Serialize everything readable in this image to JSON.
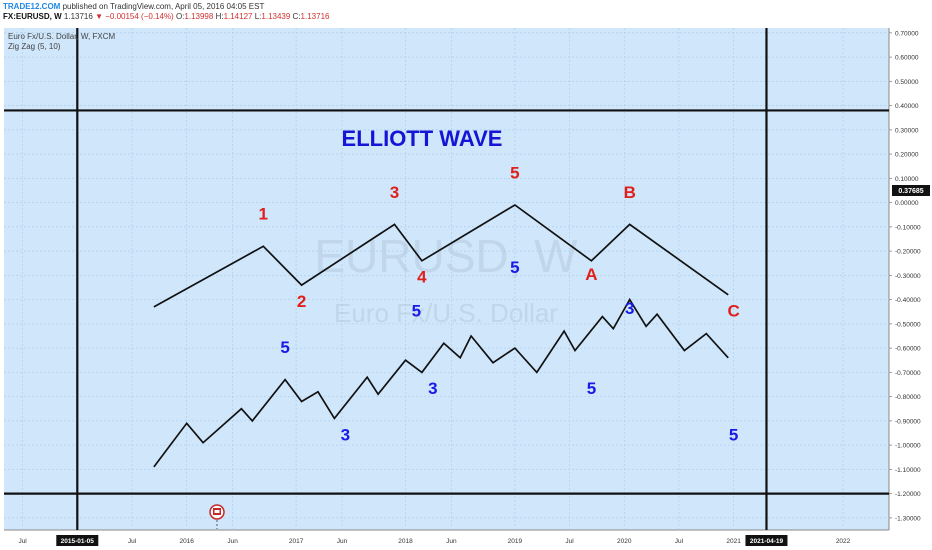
{
  "header": {
    "brand": "TRADE12.COM",
    "published": "published on TradingView.com, April 05, 2016 04:05 EST",
    "symbol": "FX:EURUSD, W",
    "last": "1.13716",
    "change_arrow": "▼",
    "change": "−0.00154 (−0.14%)",
    "o_label": "O:",
    "o_value": "1.13998",
    "h_label": "H:",
    "h_value": "1.14127",
    "l_label": "L:",
    "l_value": "1.13439",
    "c_label": "C:",
    "c_value": "1.13716"
  },
  "legend": {
    "series_title": "Euro Fx/U.S. Dollar, W, FXCM",
    "indicator": "Zig Zag (5, 10)"
  },
  "watermark": {
    "symbol": "EURUSD, W",
    "description": "Euro Fx/U.S. Dollar"
  },
  "colors": {
    "background": "#cfe6fb",
    "wave_line": "#111111",
    "red_label": "#e0201b",
    "blue_label": "#1a1ae6",
    "title": "#1515d6",
    "price_badge": "#111111"
  },
  "price_badge": "0.37685",
  "chart_data": {
    "type": "line",
    "title": "ELLIOTT WAVE",
    "ylim": [
      -1.35,
      0.72
    ],
    "yticks": [
      "0.70000",
      "0.60000",
      "0.50000",
      "0.40000",
      "0.30000",
      "0.20000",
      "0.10000",
      "0.00000",
      "-0.10000",
      "-0.20000",
      "-0.30000",
      "-0.40000",
      "-0.50000",
      "-0.60000",
      "-0.70000",
      "-0.80000",
      "-0.90000",
      "-1.00000",
      "-1.10000",
      "-1.20000",
      "-1.30000"
    ],
    "xlim": [
      2014.33,
      2022.42
    ],
    "xticks": [
      {
        "x": 2014.5,
        "label": "Jul"
      },
      {
        "x": 2015.0,
        "label": "2015-01-05",
        "highlight": true
      },
      {
        "x": 2015.5,
        "label": "Jul"
      },
      {
        "x": 2016.0,
        "label": "2016"
      },
      {
        "x": 2016.42,
        "label": "Jun"
      },
      {
        "x": 2017.0,
        "label": "2017"
      },
      {
        "x": 2017.42,
        "label": "Jun"
      },
      {
        "x": 2018.0,
        "label": "2018"
      },
      {
        "x": 2018.42,
        "label": "Jun"
      },
      {
        "x": 2019.0,
        "label": "2019"
      },
      {
        "x": 2019.5,
        "label": "Jul"
      },
      {
        "x": 2020.0,
        "label": "2020"
      },
      {
        "x": 2020.5,
        "label": "Jul"
      },
      {
        "x": 2021.0,
        "label": "2021"
      },
      {
        "x": 2021.3,
        "label": "2021-04-19",
        "highlight": true
      },
      {
        "x": 2022.0,
        "label": "2022"
      }
    ],
    "boundaries": {
      "vertical": [
        2015.0,
        2021.3
      ],
      "horizontal": [
        0.38,
        -1.2
      ]
    },
    "series": [
      {
        "points": [
          [
            2015.7,
            -0.43
          ],
          [
            2016.7,
            -0.18
          ],
          [
            2017.05,
            -0.34
          ],
          [
            2017.9,
            -0.09
          ],
          [
            2018.15,
            -0.24
          ],
          [
            2019.0,
            -0.01
          ],
          [
            2019.7,
            -0.24
          ],
          [
            2020.05,
            -0.09
          ],
          [
            2020.95,
            -0.38
          ]
        ]
      },
      {
        "points": [
          [
            2015.7,
            -1.09
          ],
          [
            2016.0,
            -0.91
          ],
          [
            2016.15,
            -0.99
          ],
          [
            2016.5,
            -0.85
          ],
          [
            2016.6,
            -0.9
          ],
          [
            2016.9,
            -0.73
          ],
          [
            2017.05,
            -0.82
          ],
          [
            2017.2,
            -0.78
          ],
          [
            2017.35,
            -0.89
          ],
          [
            2017.65,
            -0.72
          ],
          [
            2017.75,
            -0.79
          ],
          [
            2018.0,
            -0.65
          ],
          [
            2018.15,
            -0.7
          ],
          [
            2018.35,
            -0.58
          ],
          [
            2018.5,
            -0.64
          ],
          [
            2018.6,
            -0.55
          ],
          [
            2018.8,
            -0.66
          ],
          [
            2019.0,
            -0.6
          ],
          [
            2019.2,
            -0.7
          ],
          [
            2019.45,
            -0.53
          ],
          [
            2019.55,
            -0.61
          ],
          [
            2019.8,
            -0.47
          ],
          [
            2019.9,
            -0.52
          ],
          [
            2020.05,
            -0.4
          ],
          [
            2020.2,
            -0.51
          ],
          [
            2020.3,
            -0.46
          ],
          [
            2020.55,
            -0.61
          ],
          [
            2020.75,
            -0.54
          ],
          [
            2020.95,
            -0.64
          ]
        ]
      }
    ],
    "wave_labels": [
      {
        "text": "1",
        "x": 2016.7,
        "y": -0.07,
        "color": "red"
      },
      {
        "text": "2",
        "x": 2017.05,
        "y": -0.43,
        "color": "red"
      },
      {
        "text": "3",
        "x": 2017.9,
        "y": 0.02,
        "color": "red"
      },
      {
        "text": "4",
        "x": 2018.15,
        "y": -0.33,
        "color": "red"
      },
      {
        "text": "5",
        "x": 2019.0,
        "y": 0.1,
        "color": "red"
      },
      {
        "text": "A",
        "x": 2019.7,
        "y": -0.32,
        "color": "red"
      },
      {
        "text": "B",
        "x": 2020.05,
        "y": 0.02,
        "color": "red"
      },
      {
        "text": "C",
        "x": 2021.0,
        "y": -0.47,
        "color": "red"
      },
      {
        "text": "5",
        "x": 2016.9,
        "y": -0.62,
        "color": "blue"
      },
      {
        "text": "3",
        "x": 2017.45,
        "y": -0.98,
        "color": "blue"
      },
      {
        "text": "5",
        "x": 2018.1,
        "y": -0.47,
        "color": "blue"
      },
      {
        "text": "3",
        "x": 2018.25,
        "y": -0.79,
        "color": "blue"
      },
      {
        "text": "5",
        "x": 2019.0,
        "y": -0.29,
        "color": "blue"
      },
      {
        "text": "5",
        "x": 2019.7,
        "y": -0.79,
        "color": "blue"
      },
      {
        "text": "3",
        "x": 2020.05,
        "y": -0.46,
        "color": "blue"
      },
      {
        "text": "5",
        "x": 2021.0,
        "y": -0.98,
        "color": "blue"
      }
    ]
  }
}
